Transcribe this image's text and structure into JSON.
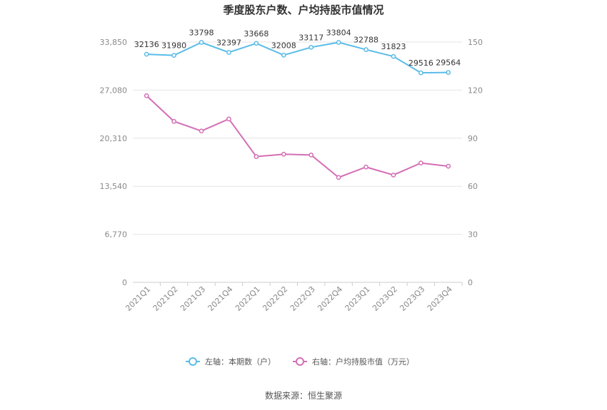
{
  "chart_data": {
    "type": "line",
    "title": "季度股东户数、户均持股市值情况",
    "categories": [
      "2021Q1",
      "2021Q2",
      "2021Q3",
      "2021Q4",
      "2022Q1",
      "2022Q2",
      "2022Q3",
      "2022Q4",
      "2023Q1",
      "2023Q2",
      "2023Q3",
      "2023Q4"
    ],
    "left_axis": {
      "min": 0,
      "max": 33850,
      "ticks": [
        "0",
        "6,770",
        "13,540",
        "20,310",
        "27,080",
        "33,850"
      ]
    },
    "right_axis": {
      "min": 0,
      "max": 150,
      "ticks": [
        "0",
        "30",
        "60",
        "90",
        "120",
        "150"
      ]
    },
    "series": [
      {
        "name": "左轴：本期数（户）",
        "axis": "left",
        "color": "#5bbce8",
        "values": [
          32136,
          31980,
          33798,
          32397,
          33668,
          32008,
          33117,
          33804,
          32788,
          31823,
          29516,
          29564
        ],
        "labels": [
          "32136",
          "31980",
          "33798",
          "32397",
          "33668",
          "32008",
          "33117",
          "33804",
          "32788",
          "31823",
          "29516",
          "29564"
        ]
      },
      {
        "name": "右轴：户均持股市值（万元）",
        "axis": "right",
        "color": "#d46eb5",
        "values": [
          116.5,
          100.5,
          94.5,
          102,
          78.5,
          80,
          79.5,
          65.5,
          72,
          67,
          74.5,
          72.5
        ]
      }
    ],
    "legend_position": "bottom",
    "grid": true
  },
  "footer": {
    "source": "数据来源：恒生聚源"
  }
}
